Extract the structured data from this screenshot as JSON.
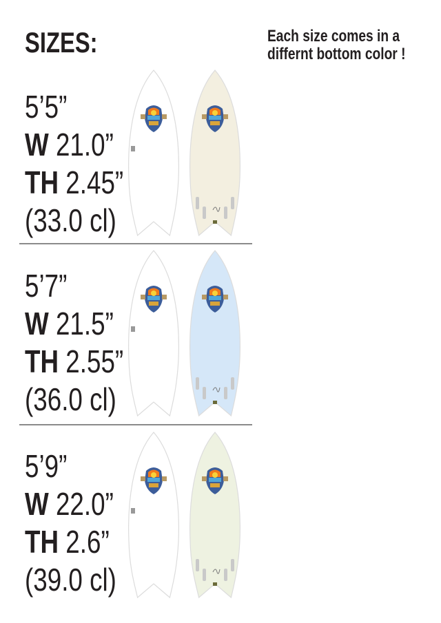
{
  "title": "SIZES:",
  "note": "Each size comes in a differnt bottom color !",
  "sizes": [
    {
      "length": "5’5”",
      "width_label": "W",
      "width": "21.0”",
      "thickness_label": "TH",
      "thickness": "2.45”",
      "volume": "(33.0 cl)",
      "bottom_color": "#f3efe0"
    },
    {
      "length": "5’7”",
      "width_label": "W",
      "width": "21.5”",
      "thickness_label": "TH",
      "thickness": "2.55”",
      "volume": "(36.0 cl)",
      "bottom_color": "#d5e7f8"
    },
    {
      "length": "5’9”",
      "width_label": "W",
      "width": "22.0”",
      "thickness_label": "TH",
      "thickness": "2.6”",
      "volume": "(39.0 cl)",
      "bottom_color": "#eef2e1"
    }
  ],
  "deck_color": "#ffffff"
}
